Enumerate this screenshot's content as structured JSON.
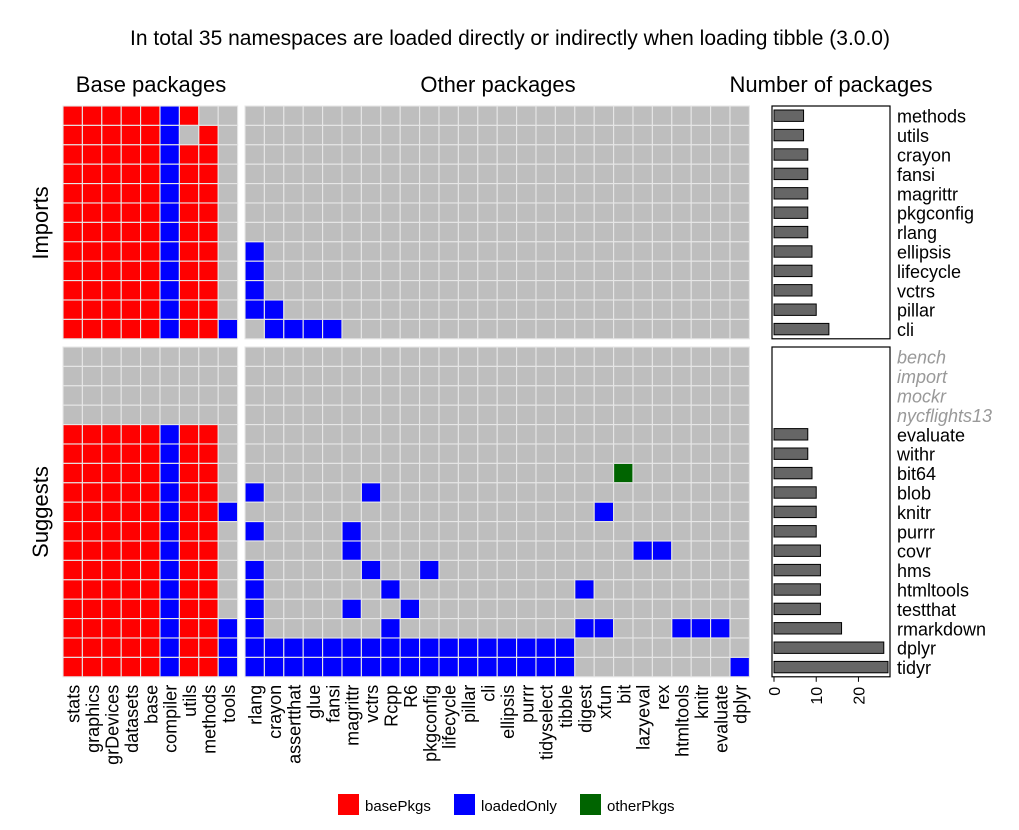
{
  "chart_data": {
    "type": "heatmap",
    "title": "In total 35 namespaces are loaded directly or indirectly when loading tibble (3.0.0)",
    "panel_titles": {
      "base": "Base packages",
      "other": "Other packages",
      "count": "Number of packages"
    },
    "facet_labels": [
      "Imports",
      "Suggests"
    ],
    "base_columns": [
      "stats",
      "graphics",
      "grDevices",
      "datasets",
      "base",
      "compiler",
      "utils",
      "methods",
      "tools"
    ],
    "other_columns": [
      "rlang",
      "crayon",
      "assertthat",
      "glue",
      "fansi",
      "magrittr",
      "vctrs",
      "Rcpp",
      "R6",
      "pkgconfig",
      "lifecycle",
      "pillar",
      "cli",
      "ellipsis",
      "purrr",
      "tidyselect",
      "tibble",
      "digest",
      "xfun",
      "bit",
      "lazyeval",
      "rex",
      "htmltools",
      "knitr",
      "evaluate",
      "dplyr"
    ],
    "legend": [
      {
        "key": "basePkgs",
        "label": "basePkgs",
        "color": "#FF0000"
      },
      {
        "key": "loadedOnly",
        "label": "loadedOnly",
        "color": "#0000FF"
      },
      {
        "key": "otherPkgs",
        "label": "otherPkgs",
        "color": "#006400"
      }
    ],
    "empty_color": "#BEBEBE",
    "count_axis": {
      "ticks": [
        0,
        10,
        20
      ],
      "xlim": [
        0,
        27
      ]
    },
    "facets": [
      {
        "name": "Imports",
        "rows": [
          {
            "pkg": "methods",
            "missing": false,
            "count": 7,
            "base": [
              "b",
              "b",
              "b",
              "b",
              "b",
              "l",
              "b",
              "",
              ""
            ],
            "other": {}
          },
          {
            "pkg": "utils",
            "missing": false,
            "count": 7,
            "base": [
              "b",
              "b",
              "b",
              "b",
              "b",
              "l",
              "",
              "b",
              ""
            ],
            "other": {}
          },
          {
            "pkg": "crayon",
            "missing": false,
            "count": 8,
            "base": [
              "b",
              "b",
              "b",
              "b",
              "b",
              "l",
              "b",
              "b",
              ""
            ],
            "other": {}
          },
          {
            "pkg": "fansi",
            "missing": false,
            "count": 8,
            "base": [
              "b",
              "b",
              "b",
              "b",
              "b",
              "l",
              "b",
              "b",
              ""
            ],
            "other": {}
          },
          {
            "pkg": "magrittr",
            "missing": false,
            "count": 8,
            "base": [
              "b",
              "b",
              "b",
              "b",
              "b",
              "l",
              "b",
              "b",
              ""
            ],
            "other": {}
          },
          {
            "pkg": "pkgconfig",
            "missing": false,
            "count": 8,
            "base": [
              "b",
              "b",
              "b",
              "b",
              "b",
              "l",
              "b",
              "b",
              ""
            ],
            "other": {}
          },
          {
            "pkg": "rlang",
            "missing": false,
            "count": 8,
            "base": [
              "b",
              "b",
              "b",
              "b",
              "b",
              "l",
              "b",
              "b",
              ""
            ],
            "other": {}
          },
          {
            "pkg": "ellipsis",
            "missing": false,
            "count": 9,
            "base": [
              "b",
              "b",
              "b",
              "b",
              "b",
              "l",
              "b",
              "b",
              ""
            ],
            "other": {
              "rlang": "l"
            }
          },
          {
            "pkg": "lifecycle",
            "missing": false,
            "count": 9,
            "base": [
              "b",
              "b",
              "b",
              "b",
              "b",
              "l",
              "b",
              "b",
              ""
            ],
            "other": {
              "rlang": "l"
            }
          },
          {
            "pkg": "vctrs",
            "missing": false,
            "count": 9,
            "base": [
              "b",
              "b",
              "b",
              "b",
              "b",
              "l",
              "b",
              "b",
              ""
            ],
            "other": {
              "rlang": "l"
            }
          },
          {
            "pkg": "pillar",
            "missing": false,
            "count": 10,
            "base": [
              "b",
              "b",
              "b",
              "b",
              "b",
              "l",
              "b",
              "b",
              ""
            ],
            "other": {
              "rlang": "l",
              "crayon": "l"
            }
          },
          {
            "pkg": "cli",
            "missing": false,
            "count": 13,
            "base": [
              "b",
              "b",
              "b",
              "b",
              "b",
              "l",
              "b",
              "b",
              "l"
            ],
            "other": {
              "crayon": "l",
              "assertthat": "l",
              "glue": "l",
              "fansi": "l"
            }
          }
        ]
      },
      {
        "name": "Suggests",
        "rows": [
          {
            "pkg": "bench",
            "missing": true,
            "count": 0,
            "base": [
              "",
              "",
              "",
              "",
              "",
              "",
              "",
              "",
              ""
            ],
            "other": {}
          },
          {
            "pkg": "import",
            "missing": true,
            "count": 0,
            "base": [
              "",
              "",
              "",
              "",
              "",
              "",
              "",
              "",
              ""
            ],
            "other": {}
          },
          {
            "pkg": "mockr",
            "missing": true,
            "count": 0,
            "base": [
              "",
              "",
              "",
              "",
              "",
              "",
              "",
              "",
              ""
            ],
            "other": {}
          },
          {
            "pkg": "nycflights13",
            "missing": true,
            "count": 0,
            "base": [
              "",
              "",
              "",
              "",
              "",
              "",
              "",
              "",
              ""
            ],
            "other": {}
          },
          {
            "pkg": "evaluate",
            "missing": false,
            "count": 8,
            "base": [
              "b",
              "b",
              "b",
              "b",
              "b",
              "l",
              "b",
              "b",
              ""
            ],
            "other": {}
          },
          {
            "pkg": "withr",
            "missing": false,
            "count": 8,
            "base": [
              "b",
              "b",
              "b",
              "b",
              "b",
              "l",
              "b",
              "b",
              ""
            ],
            "other": {}
          },
          {
            "pkg": "bit64",
            "missing": false,
            "count": 9,
            "base": [
              "b",
              "b",
              "b",
              "b",
              "b",
              "l",
              "b",
              "b",
              ""
            ],
            "other": {
              "bit": "o"
            }
          },
          {
            "pkg": "blob",
            "missing": false,
            "count": 10,
            "base": [
              "b",
              "b",
              "b",
              "b",
              "b",
              "l",
              "b",
              "b",
              ""
            ],
            "other": {
              "rlang": "l",
              "vctrs": "l"
            }
          },
          {
            "pkg": "knitr",
            "missing": false,
            "count": 10,
            "base": [
              "b",
              "b",
              "b",
              "b",
              "b",
              "l",
              "b",
              "b",
              "l"
            ],
            "other": {
              "xfun": "l"
            }
          },
          {
            "pkg": "purrr",
            "missing": false,
            "count": 10,
            "base": [
              "b",
              "b",
              "b",
              "b",
              "b",
              "l",
              "b",
              "b",
              ""
            ],
            "other": {
              "rlang": "l",
              "magrittr": "l"
            }
          },
          {
            "pkg": "covr",
            "missing": false,
            "count": 11,
            "base": [
              "b",
              "b",
              "b",
              "b",
              "b",
              "l",
              "b",
              "b",
              ""
            ],
            "other": {
              "magrittr": "l",
              "lazyeval": "l",
              "rex": "l"
            }
          },
          {
            "pkg": "hms",
            "missing": false,
            "count": 11,
            "base": [
              "b",
              "b",
              "b",
              "b",
              "b",
              "l",
              "b",
              "b",
              ""
            ],
            "other": {
              "rlang": "l",
              "vctrs": "l",
              "pkgconfig": "l"
            }
          },
          {
            "pkg": "htmltools",
            "missing": false,
            "count": 11,
            "base": [
              "b",
              "b",
              "b",
              "b",
              "b",
              "l",
              "b",
              "b",
              ""
            ],
            "other": {
              "rlang": "l",
              "Rcpp": "l",
              "digest": "l"
            }
          },
          {
            "pkg": "testthat",
            "missing": false,
            "count": 11,
            "base": [
              "b",
              "b",
              "b",
              "b",
              "b",
              "l",
              "b",
              "b",
              ""
            ],
            "other": {
              "rlang": "l",
              "magrittr": "l",
              "R6": "l"
            }
          },
          {
            "pkg": "rmarkdown",
            "missing": false,
            "count": 16,
            "base": [
              "b",
              "b",
              "b",
              "b",
              "b",
              "l",
              "b",
              "b",
              "l"
            ],
            "other": {
              "rlang": "l",
              "Rcpp": "l",
              "digest": "l",
              "xfun": "l",
              "htmltools": "l",
              "knitr": "l",
              "evaluate": "l"
            }
          },
          {
            "pkg": "dplyr",
            "missing": false,
            "count": 26,
            "base": [
              "b",
              "b",
              "b",
              "b",
              "b",
              "l",
              "b",
              "b",
              "l"
            ],
            "other": {
              "rlang": "l",
              "crayon": "l",
              "assertthat": "l",
              "glue": "l",
              "fansi": "l",
              "magrittr": "l",
              "vctrs": "l",
              "Rcpp": "l",
              "R6": "l",
              "pkgconfig": "l",
              "lifecycle": "l",
              "pillar": "l",
              "cli": "l",
              "ellipsis": "l",
              "purrr": "l",
              "tidyselect": "l",
              "tibble": "l"
            }
          },
          {
            "pkg": "tidyr",
            "missing": false,
            "count": 27,
            "base": [
              "b",
              "b",
              "b",
              "b",
              "b",
              "l",
              "b",
              "b",
              "l"
            ],
            "other": {
              "rlang": "l",
              "crayon": "l",
              "assertthat": "l",
              "glue": "l",
              "fansi": "l",
              "magrittr": "l",
              "vctrs": "l",
              "Rcpp": "l",
              "R6": "l",
              "pkgconfig": "l",
              "lifecycle": "l",
              "pillar": "l",
              "cli": "l",
              "ellipsis": "l",
              "purrr": "l",
              "tidyselect": "l",
              "tibble": "l",
              "dplyr": "l"
            }
          }
        ]
      }
    ]
  }
}
